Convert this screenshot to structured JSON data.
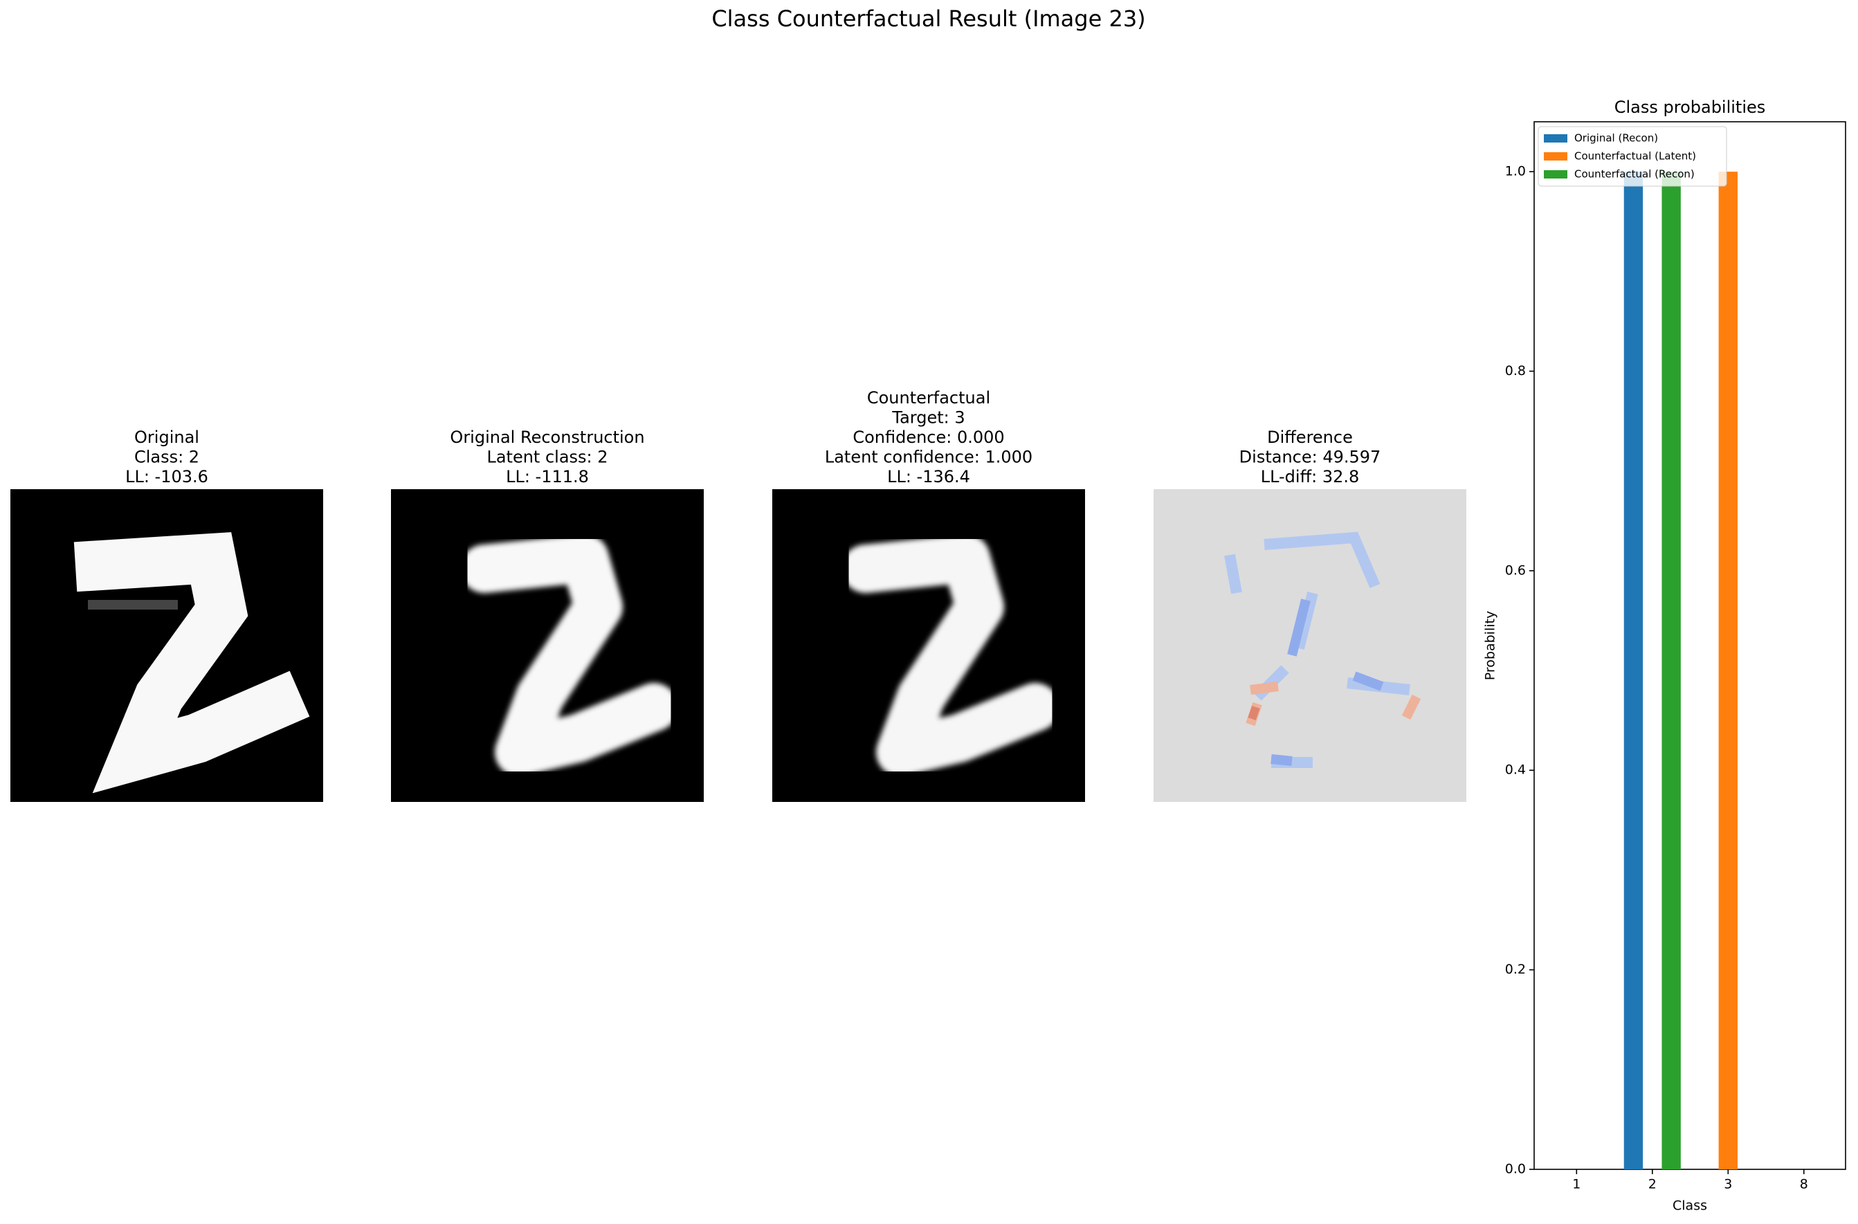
{
  "title": "Class Counterfactual Result (Image 23)",
  "panels": [
    {
      "lines": [
        "Original",
        "Class: 2",
        "LL: -103.6"
      ]
    },
    {
      "lines": [
        "Original Reconstruction",
        "Latent class: 2",
        "LL: -111.8"
      ]
    },
    {
      "lines": [
        "Counterfactual",
        "Target: 3",
        "Confidence: 0.000",
        "Latent confidence: 1.000",
        "LL: -136.4"
      ]
    },
    {
      "lines": [
        "Difference",
        "Distance: 49.597",
        "LL-diff: 32.8"
      ]
    }
  ],
  "chart_data": {
    "type": "bar",
    "title": "Class probabilities",
    "x_label": "Class",
    "y_label": "Probability",
    "categories": [
      "1",
      "2",
      "3",
      "8"
    ],
    "series": [
      {
        "name": "Original (Recon)",
        "color": "#1f77b4",
        "values": [
          0,
          1,
          0,
          0
        ]
      },
      {
        "name": "Counterfactual (Latent)",
        "color": "#ff7f0e",
        "values": [
          0,
          0,
          1,
          0
        ]
      },
      {
        "name": "Counterfactual (Recon)",
        "color": "#2ca02c",
        "values": [
          0,
          1,
          0,
          0
        ]
      }
    ],
    "ylim": [
      0,
      1.05
    ],
    "yticks": [
      {
        "value": 0,
        "label": "0.0"
      },
      {
        "value": 0.2,
        "label": "0.2"
      },
      {
        "value": 0.4,
        "label": "0.4"
      },
      {
        "value": 0.6,
        "label": "0.6"
      },
      {
        "value": 0.8,
        "label": "0.8"
      },
      {
        "value": 1,
        "label": "1.0"
      }
    ],
    "legend": "upper left"
  }
}
